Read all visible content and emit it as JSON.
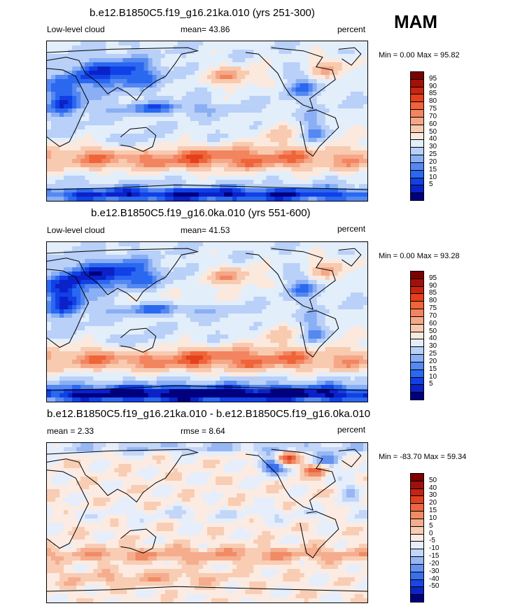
{
  "season": "MAM",
  "color_scales": {
    "abs": [
      "#00007f",
      "#0a22c8",
      "#1140e6",
      "#2a68f0",
      "#5588f0",
      "#8aaff5",
      "#b9d0f8",
      "#e3eefb",
      "#fbe9de",
      "#f8cab0",
      "#f5a888",
      "#f38460",
      "#ef6438",
      "#e4401c",
      "#c82410",
      "#a3100a",
      "#7c0000"
    ],
    "diff": [
      "#00007f",
      "#0b25c3",
      "#1847e3",
      "#3a6fee",
      "#6592f0",
      "#96b6f4",
      "#c3d6f8",
      "#e6eefb",
      "#fbebe2",
      "#f8cdb4",
      "#f5ad8e",
      "#f08b66",
      "#eb6641",
      "#df4220",
      "#c42410",
      "#a0100a",
      "#7c0000"
    ]
  },
  "panels": [
    {
      "title": "b.e12.B1850C5.f19_g16.21ka.010 (yrs 251-300)",
      "left_label": "Low-level cloud",
      "center_label": "mean=  43.86",
      "right_label": "percent",
      "minmax": "Min =   0.00 Max =  95.82"
    },
    {
      "title": "b.e12.B1850C5.f19_g16.0ka.010 (yrs 551-600)",
      "left_label": "Low-level cloud",
      "center_label": "mean=  41.53",
      "right_label": "percent",
      "minmax": "Min =   0.00 Max =  93.28"
    },
    {
      "title": "b.e12.B1850C5.f19_g16.21ka.010 - b.e12.B1850C5.f19_g16.0ka.010",
      "left_label": "mean =   2.33",
      "center_label": "rmse =   8.64",
      "right_label": "percent",
      "minmax": "Min = -83.70 Max =  59.34"
    }
  ],
  "chart_data": [
    {
      "type": "heatmap",
      "title": "b.e12.B1850C5.f19_g16.21ka.010 (yrs 251-300)",
      "variable": "Low-level cloud",
      "units": "percent",
      "mean": 43.86,
      "min": 0.0,
      "max": 95.82,
      "colorbar_levels": [
        5,
        10,
        15,
        20,
        25,
        30,
        40,
        50,
        60,
        70,
        75,
        80,
        85,
        90,
        95
      ],
      "colorbar_labels": [
        "95",
        "90",
        "85",
        "80",
        "75",
        "70",
        "60",
        "50",
        "40",
        "30",
        "25",
        "20",
        "15",
        "10",
        "5"
      ]
    },
    {
      "type": "heatmap",
      "title": "b.e12.B1850C5.f19_g16.0ka.010 (yrs 551-600)",
      "variable": "Low-level cloud",
      "units": "percent",
      "mean": 41.53,
      "min": 0.0,
      "max": 93.28,
      "colorbar_levels": [
        5,
        10,
        15,
        20,
        25,
        30,
        40,
        50,
        60,
        70,
        75,
        80,
        85,
        90,
        95
      ],
      "colorbar_labels": [
        "95",
        "90",
        "85",
        "80",
        "75",
        "70",
        "60",
        "50",
        "40",
        "30",
        "25",
        "20",
        "15",
        "10",
        "5"
      ]
    },
    {
      "type": "heatmap",
      "title": "b.e12.B1850C5.f19_g16.21ka.010 - b.e12.B1850C5.f19_g16.0ka.010",
      "units": "percent",
      "mean": 2.33,
      "rmse": 8.64,
      "min": -83.7,
      "max": 59.34,
      "colorbar_levels": [
        -50,
        -40,
        -30,
        -20,
        -15,
        -10,
        -5,
        0,
        5,
        10,
        15,
        20,
        30,
        40,
        50
      ],
      "colorbar_labels": [
        "50",
        "40",
        "30",
        "20",
        "15",
        "10",
        "5",
        "0",
        "-5",
        "-10",
        "-15",
        "-20",
        "-30",
        "-40",
        "-50"
      ]
    }
  ]
}
